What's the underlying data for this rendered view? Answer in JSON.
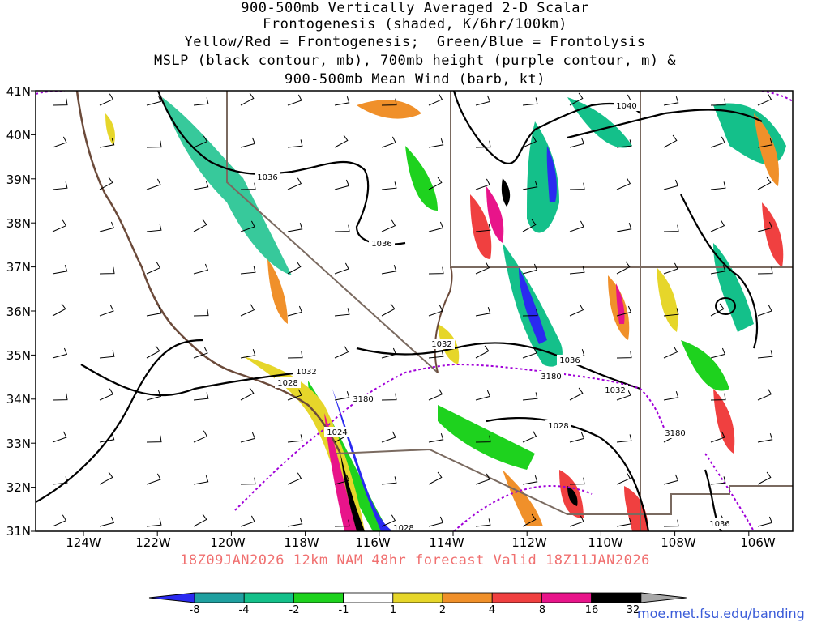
{
  "title_lines": [
    "900-500mb Vertically Averaged 2-D Scalar",
    "Frontogenesis (shaded, K/6hr/100km)",
    "Yellow/Red = Frontogenesis;  Green/Blue = Frontolysis",
    "MSLP (black contour, mb), 700mb height (purple contour, m) &",
    "900-500mb Mean Wind (barb, kt)"
  ],
  "lat_labels": [
    "41N",
    "40N",
    "39N",
    "38N",
    "37N",
    "36N",
    "35N",
    "34N",
    "33N",
    "32N",
    "31N"
  ],
  "lon_labels": [
    "124W",
    "122W",
    "120W",
    "118W",
    "116W",
    "114W",
    "112W",
    "110W",
    "108W",
    "106W"
  ],
  "contour_labels": [
    "1040",
    "1036",
    "1036",
    "1032",
    "1028",
    "3180",
    "1024",
    "1032",
    "1036",
    "3180",
    "1032",
    "1028",
    "3180",
    "1028",
    "1036"
  ],
  "footer": "18Z09JAN2026 12km NAM 48hr forecast Valid 18Z11JAN2026",
  "colorbar": {
    "labels": [
      "-8",
      "-4",
      "-2",
      "-1",
      "1",
      "2",
      "4",
      "8",
      "16",
      "32"
    ],
    "colors": [
      "#2a2af0",
      "#1fa0a0",
      "#14c08a",
      "#1ed21e",
      "#ffffff",
      "#e6d62a",
      "#f0902a",
      "#f04040",
      "#e8148a",
      "#000000",
      "#a8a8a8"
    ]
  },
  "credit": "moe.met.fsu.edu/banding"
}
